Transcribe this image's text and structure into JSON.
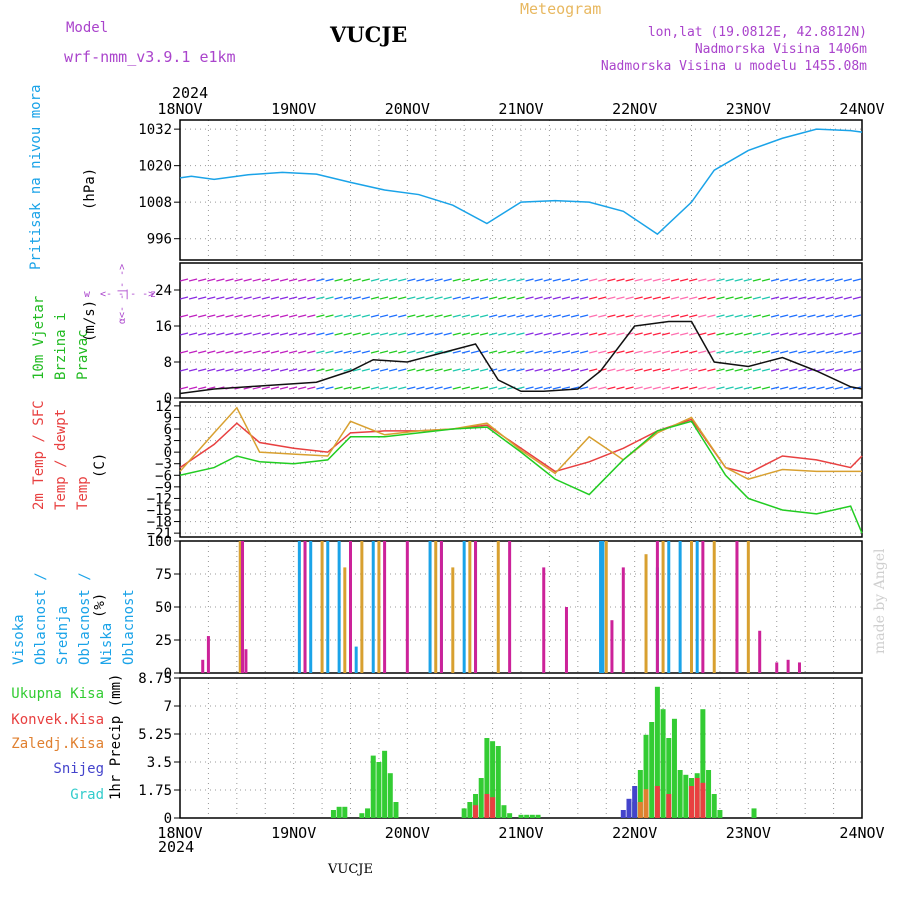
{
  "header": {
    "model_label": "Model",
    "model_name": "wrf-nmm_v3.9.1  e1km",
    "station": "VUCJE",
    "product": "Meteogram",
    "coords": "lon,lat (19.0812E, 42.8812N)",
    "elevation": "Nadmorska Visina 1406m",
    "model_elevation": "Nadmorska Visina u modelu 1455.08m"
  },
  "time_axis": {
    "year": "2024",
    "ticks": [
      "18NOV",
      "19NOV",
      "20NOV",
      "21NOV",
      "22NOV",
      "23NOV",
      "24NOV"
    ],
    "footer": "VUCJE"
  },
  "watermark": "made by Angel",
  "colors": {
    "pressure": "#1aa3e8",
    "wind": "#22bb22",
    "temp2m": "#e84040",
    "sfc": "#d8a030",
    "dewpt": "#22cc22",
    "high_cloud": "#1aa3e8",
    "mid_cloud": "#d8a030",
    "low_cloud": "#cc2299",
    "total_precip": "#33cc33",
    "conv_precip": "#e84040",
    "frz_precip": "#e08030",
    "snow": "#4444cc",
    "hail": "#33cccc",
    "dir_label": "#aa44cc"
  },
  "chart_data": [
    {
      "type": "line",
      "title": "Pritisak na nivou mora",
      "ylabel": "(hPa)",
      "ylim": [
        989,
        1035
      ],
      "yticks": [
        996,
        1008,
        1020,
        1032
      ],
      "grid": true,
      "x_unit": "day",
      "series": [
        {
          "name": "Pritisak na nivou mora",
          "x": [
            0,
            0.1,
            0.3,
            0.6,
            0.9,
            1.2,
            1.5,
            1.8,
            2.1,
            2.4,
            2.7,
            3.0,
            3.3,
            3.6,
            3.9,
            4.2,
            4.5,
            4.7,
            5.0,
            5.3,
            5.6,
            5.9,
            6.0
          ],
          "y": [
            1016,
            1016.5,
            1015.5,
            1017,
            1017.8,
            1017.2,
            1014.5,
            1012,
            1010.5,
            1007,
            1001,
            1008,
            1008.5,
            1008,
            1005,
            997.5,
            1008,
            1018.5,
            1025,
            1029,
            1032,
            1031.5,
            1031
          ]
        }
      ]
    },
    {
      "type": "line",
      "title": "10m Vjetar Brzina i Pravac",
      "ylabel": "(m/s)",
      "ylim": [
        0,
        30
      ],
      "yticks": [
        0,
        8,
        16,
        24
      ],
      "grid": true,
      "direction_labels": [
        "w",
        "<- -|- ->",
        "z",
        "α<- -|- ->"
      ],
      "series": [
        {
          "name": "10m Vjetar",
          "x": [
            0,
            0.3,
            0.6,
            0.9,
            1.2,
            1.5,
            1.7,
            2.0,
            2.3,
            2.6,
            2.8,
            3.0,
            3.2,
            3.5,
            3.7,
            4.0,
            4.3,
            4.5,
            4.7,
            5.0,
            5.3,
            5.6,
            5.9,
            6.0
          ],
          "y": [
            1,
            2,
            2.5,
            3,
            3.5,
            6,
            8.5,
            8,
            10,
            12,
            4,
            1.5,
            1.5,
            2,
            6,
            16,
            17,
            17,
            8,
            7,
            9,
            6,
            2.5,
            2
          ]
        }
      ]
    },
    {
      "type": "line",
      "title": "2m Temp / SFC Temp / dewpt Temp",
      "ylabel": "(C)",
      "ylim": [
        -22,
        13
      ],
      "yticks": [
        12,
        9,
        6,
        3,
        0,
        -3,
        -6,
        -9,
        -12,
        -15,
        -18,
        -21
      ],
      "grid": true,
      "series": [
        {
          "name": "2m Temp",
          "x": [
            0,
            0.3,
            0.5,
            0.7,
            1.0,
            1.3,
            1.5,
            1.8,
            2.1,
            2.4,
            2.7,
            3.0,
            3.3,
            3.6,
            3.9,
            4.2,
            4.5,
            4.8,
            5.0,
            5.3,
            5.6,
            5.9,
            6.0
          ],
          "y": [
            -4,
            2,
            7.5,
            2.5,
            1,
            0,
            5,
            5.5,
            5.5,
            6,
            7,
            1,
            -5,
            -2.5,
            1,
            5.5,
            8.5,
            -4,
            -5.5,
            -1,
            -2,
            -4,
            -1
          ]
        },
        {
          "name": "SFC Temp",
          "x": [
            0,
            0.3,
            0.5,
            0.7,
            1.0,
            1.3,
            1.5,
            1.8,
            2.1,
            2.4,
            2.7,
            3.0,
            3.3,
            3.6,
            3.9,
            4.2,
            4.5,
            4.8,
            5.0,
            5.3,
            5.6,
            5.9,
            6.0
          ],
          "y": [
            -5,
            5,
            11.5,
            0,
            -0.5,
            -1,
            8,
            4.5,
            5.5,
            6,
            7.5,
            0.5,
            -5.5,
            4,
            -2,
            5,
            9,
            -4,
            -7,
            -4.5,
            -5,
            -5,
            -5
          ]
        },
        {
          "name": "dewpt Temp",
          "x": [
            0,
            0.3,
            0.5,
            0.7,
            1.0,
            1.3,
            1.5,
            1.8,
            2.1,
            2.4,
            2.7,
            3.0,
            3.3,
            3.6,
            3.9,
            4.2,
            4.5,
            4.8,
            5.0,
            5.3,
            5.6,
            5.9,
            6.0
          ],
          "y": [
            -6,
            -4,
            -1,
            -2.5,
            -3,
            -2,
            4,
            4,
            5,
            6,
            6.5,
            0,
            -7,
            -11,
            -2,
            5.5,
            8,
            -6,
            -12,
            -15,
            -16,
            -14,
            -21
          ]
        }
      ]
    },
    {
      "type": "bar",
      "title": "Visoka Oblacnost / Srednja Oblacnost / Niska Oblacnost",
      "ylabel": "(%)",
      "ylim": [
        0,
        100
      ],
      "yticks": [
        0,
        25,
        50,
        75,
        100
      ],
      "grid": true,
      "series": [
        {
          "name": "Visoka Oblacnost",
          "x": [
            1.05,
            1.15,
            1.3,
            1.4,
            1.55,
            1.7,
            2.2,
            2.3,
            2.5,
            2.6,
            3.7,
            3.72,
            4.2,
            4.3,
            4.4,
            4.55
          ],
          "y": [
            100,
            100,
            100,
            100,
            20,
            100,
            100,
            100,
            100,
            100,
            100,
            100,
            80,
            100,
            100,
            100
          ]
        },
        {
          "name": "Srednja Oblacnost",
          "x": [
            0.53,
            1.1,
            1.25,
            1.45,
            1.6,
            1.75,
            2.25,
            2.4,
            2.55,
            2.8,
            3.75,
            4.1,
            4.25,
            4.5,
            4.7,
            4.9,
            5.0
          ],
          "y": [
            100,
            100,
            100,
            80,
            100,
            100,
            100,
            80,
            100,
            100,
            100,
            90,
            100,
            100,
            100,
            100,
            100
          ]
        },
        {
          "name": "Niska Oblacnost",
          "x": [
            0.2,
            0.25,
            0.55,
            0.58,
            1.1,
            1.5,
            1.8,
            2.0,
            2.3,
            2.6,
            2.9,
            3.2,
            3.4,
            3.8,
            3.9,
            4.2,
            4.6,
            4.9,
            5.1,
            5.25,
            5.35,
            5.45
          ],
          "y": [
            10,
            28,
            100,
            18,
            100,
            100,
            100,
            100,
            100,
            100,
            100,
            80,
            50,
            40,
            80,
            100,
            100,
            100,
            32,
            8,
            10,
            8
          ]
        }
      ]
    },
    {
      "type": "bar",
      "title": "1hr Precip",
      "ylabel": "1hr Precip (mm)",
      "ylim": [
        0,
        8.75
      ],
      "yticks": [
        0,
        1.75,
        3.5,
        5.25,
        7,
        8.75
      ],
      "grid": true,
      "legend": [
        "Ukupna Kisa",
        "Konvek.Kisa",
        "Zaledj.Kisa",
        "Snijeg",
        "Grad"
      ],
      "series": [
        {
          "name": "Ukupna Kisa",
          "x": [
            1.35,
            1.4,
            1.45,
            1.6,
            1.65,
            1.7,
            1.75,
            1.8,
            1.85,
            1.9,
            2.5,
            2.55,
            2.6,
            2.65,
            2.7,
            2.75,
            2.8,
            2.85,
            2.9,
            3.0,
            3.05,
            3.1,
            3.15,
            4.0,
            4.05,
            4.1,
            4.15,
            4.2,
            4.25,
            4.3,
            4.35,
            4.4,
            4.45,
            4.5,
            4.55,
            4.6,
            4.65,
            4.7,
            4.75,
            5.05
          ],
          "y": [
            0.5,
            0.7,
            0.7,
            0.3,
            0.6,
            3.9,
            3.5,
            4.2,
            2.8,
            1.0,
            0.6,
            1.0,
            1.5,
            2.5,
            5.0,
            4.8,
            4.5,
            0.8,
            0.3,
            0.2,
            0.2,
            0.2,
            0.2,
            1.0,
            3.0,
            5.2,
            6.0,
            8.2,
            6.8,
            5.0,
            6.2,
            3.0,
            2.7,
            2.5,
            2.8,
            6.8,
            3.0,
            1.5,
            0.5,
            0.6
          ]
        },
        {
          "name": "Konvek.Kisa",
          "x": [
            2.6,
            2.7,
            2.75,
            4.2,
            4.3,
            4.5,
            4.55,
            4.6
          ],
          "y": [
            0.8,
            1.5,
            1.3,
            2.0,
            1.5,
            2.0,
            2.5,
            2.2
          ]
        },
        {
          "name": "Zaledj.Kisa",
          "x": [
            4.05,
            4.1
          ],
          "y": [
            1.0,
            1.8
          ]
        },
        {
          "name": "Snijeg",
          "x": [
            3.9,
            3.95,
            4.0
          ],
          "y": [
            0.5,
            1.2,
            2.0
          ]
        }
      ]
    }
  ]
}
